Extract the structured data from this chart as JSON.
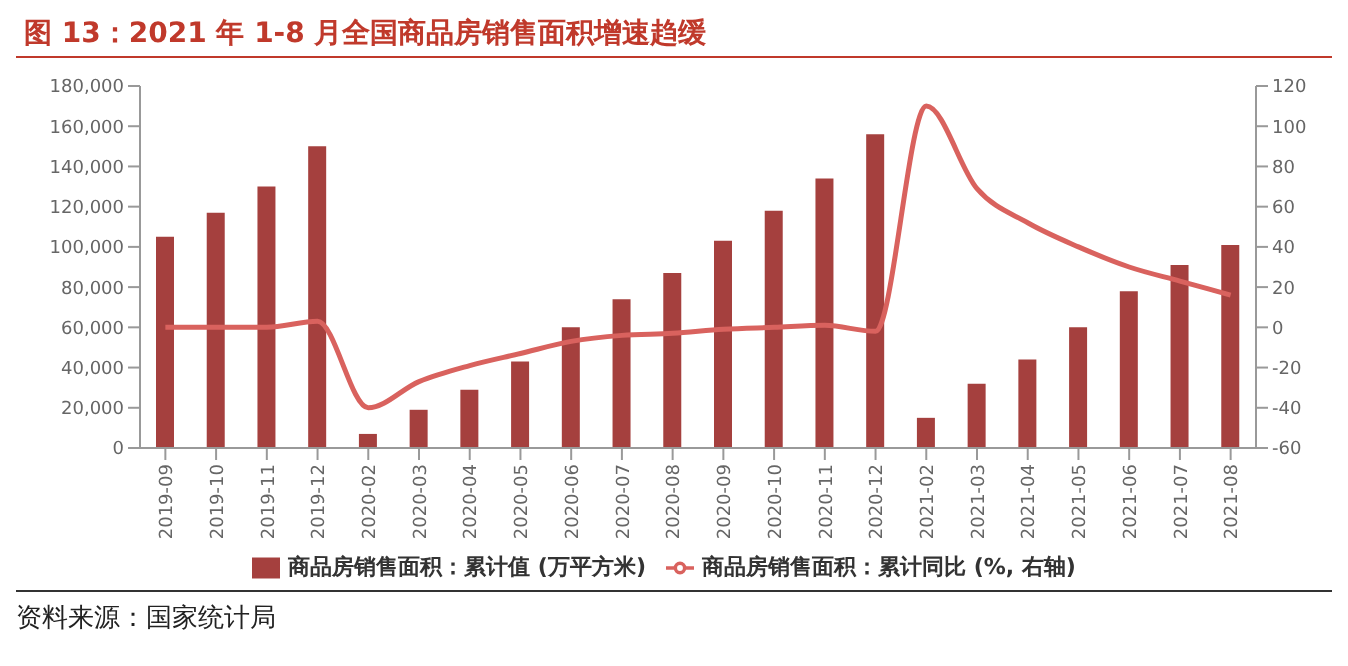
{
  "chart_data": {
    "type": "bar",
    "title": "图 13：2021 年 1-8 月全国商品房销售面积增速趋缓",
    "categories": [
      "2019-09",
      "2019-10",
      "2019-11",
      "2019-12",
      "2020-02",
      "2020-03",
      "2020-04",
      "2020-05",
      "2020-06",
      "2020-07",
      "2020-08",
      "2020-09",
      "2020-10",
      "2020-11",
      "2020-12",
      "2021-02",
      "2021-03",
      "2021-04",
      "2021-05",
      "2021-06",
      "2021-07",
      "2021-08"
    ],
    "series": [
      {
        "name": "商品房销售面积：累计值 (万平方米)",
        "color": "#a5403e",
        "values": [
          105000,
          117000,
          130000,
          150000,
          7000,
          19000,
          29000,
          43000,
          60000,
          74000,
          87000,
          103000,
          118000,
          134000,
          156000,
          15000,
          32000,
          44000,
          60000,
          78000,
          91000,
          101000
        ]
      },
      {
        "name": "商品房销售面积：累计同比 (%, 右轴)",
        "type": "line",
        "axis": "y2",
        "color": "#d9625e",
        "values": [
          0,
          0,
          0,
          3,
          -40,
          -27,
          -19,
          -13,
          -7,
          -4,
          -3,
          -1,
          0,
          1,
          -2,
          110,
          69,
          52,
          40,
          30,
          23,
          16
        ]
      }
    ],
    "ylim": [
      0,
      180000
    ],
    "yticks": [
      {
        "value": 0,
        "label": "0"
      },
      {
        "value": 20000,
        "label": "20,000"
      },
      {
        "value": 40000,
        "label": "40,000"
      },
      {
        "value": 60000,
        "label": "60,000"
      },
      {
        "value": 80000,
        "label": "80,000"
      },
      {
        "value": 100000,
        "label": "100,000"
      },
      {
        "value": 120000,
        "label": "120,000"
      },
      {
        "value": 140000,
        "label": "140,000"
      },
      {
        "value": 160000,
        "label": "160,000"
      },
      {
        "value": 180000,
        "label": "180,000"
      }
    ],
    "y2lim": [
      -60,
      120
    ],
    "y2ticks": [
      -60,
      -40,
      -20,
      0,
      20,
      40,
      60,
      80,
      100,
      120
    ],
    "legend": "bottom",
    "grid": false,
    "marker": "none",
    "annotations": [
      "资料来源：国家统计局"
    ]
  }
}
